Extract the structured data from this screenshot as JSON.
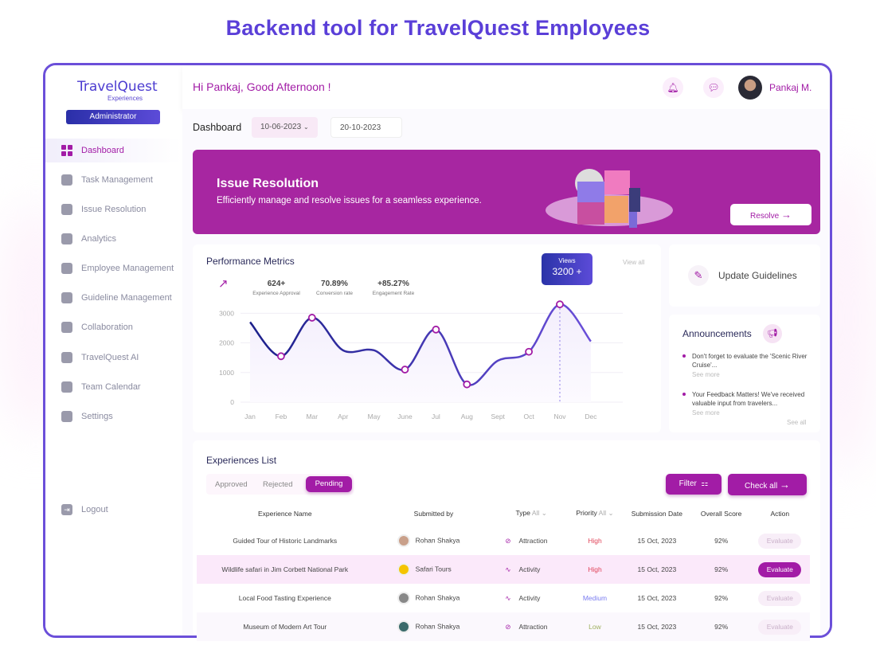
{
  "headline": "Backend tool for TravelQuest Employees",
  "logo": {
    "name": "TravelQuest",
    "sub": "Experiences"
  },
  "role": "Administrator",
  "sidebar": {
    "items": [
      {
        "label": "Dashboard",
        "icon": "grid-icon"
      },
      {
        "label": "Task Management",
        "icon": "bar-chart-icon"
      },
      {
        "label": "Issue Resolution",
        "icon": "alert-icon"
      },
      {
        "label": "Analytics",
        "icon": "pulse-icon"
      },
      {
        "label": "Employee Management",
        "icon": "user-icon"
      },
      {
        "label": "Guideline Management",
        "icon": "chart-icon"
      },
      {
        "label": "Collaboration",
        "icon": "collab-icon"
      },
      {
        "label": "TravelQuest AI",
        "icon": "sparkle-icon"
      },
      {
        "label": "Team Calendar",
        "icon": "calendar-icon"
      },
      {
        "label": "Settings",
        "icon": "gear-icon"
      }
    ],
    "logout": "Logout"
  },
  "header": {
    "greeting": "Hi Pankaj, Good Afternoon !",
    "user": "Pankaj M."
  },
  "filters": {
    "title": "Dashboard",
    "from": "10-06-2023",
    "to": "20-10-2023"
  },
  "banner": {
    "title": "Issue Resolution",
    "subtitle": "Efficiently manage and resolve issues for a seamless experience.",
    "button": "Resolve"
  },
  "metrics": {
    "title": "Performance Metrics",
    "view_all": "View all",
    "stats": [
      {
        "value": "624+",
        "label": "Experience Approval"
      },
      {
        "value": "70.89%",
        "label": "Conversion rate"
      },
      {
        "value": "+85.27%",
        "label": "Engagement Rate"
      }
    ],
    "tooltip": {
      "label": "Views",
      "value": "3200 +"
    }
  },
  "chart_data": {
    "type": "line",
    "categories": [
      "Jan",
      "Feb",
      "Mar",
      "Apr",
      "May",
      "June",
      "Jul",
      "Aug",
      "Sept",
      "Oct",
      "Nov",
      "Dec"
    ],
    "values": [
      2700,
      1550,
      2850,
      1750,
      1750,
      1100,
      2450,
      600,
      1400,
      1700,
      3300,
      2050
    ],
    "markers": [
      "Feb",
      "Mar",
      "June",
      "Jul",
      "Aug",
      "Oct",
      "Nov"
    ],
    "highlight": "Nov",
    "yticks": [
      0,
      1000,
      2000,
      3000
    ],
    "ylim": [
      0,
      3600
    ],
    "grid": true,
    "colors": {
      "start": "#1b1f8a",
      "end": "#6a4fd9",
      "marker": "#a21ca6"
    }
  },
  "guidelines": {
    "label": "Update Guidelines"
  },
  "announcements": {
    "title": "Announcements",
    "items": [
      {
        "text": "Don't forget to evaluate the 'Scenic River Cruise'...",
        "more": "See more"
      },
      {
        "text": "Your Feedback Matters! We've received valuable input from travelers...",
        "more": "See more"
      }
    ],
    "see_all": "See all"
  },
  "experiences": {
    "title": "Experiences List",
    "tabs": [
      "Approved",
      "Rejected",
      "Pending"
    ],
    "active_tab": "Pending",
    "filter": "Filter",
    "check_all": "Check all",
    "columns": [
      "Experience Name",
      "Submitted by",
      "Type",
      "Priority",
      "Submission Date",
      "Overall Score",
      "Action"
    ],
    "type_filter": "All",
    "priority_filter": "All",
    "rows": [
      {
        "name": "Guided Tour of Historic Landmarks",
        "by": "Rohan Shakya",
        "type": "Attraction",
        "priority": "High",
        "date": "15 Oct, 2023",
        "score": "92%",
        "action": "Evaluate"
      },
      {
        "name": "Wildlife safari in Jim Corbett National Park",
        "by": "Safari Tours",
        "type": "Activity",
        "priority": "High",
        "date": "15 Oct, 2023",
        "score": "92%",
        "action": "Evaluate"
      },
      {
        "name": "Local Food Tasting Experience",
        "by": "Rohan Shakya",
        "type": "Activity",
        "priority": "Medium",
        "date": "15 Oct, 2023",
        "score": "92%",
        "action": "Evaluate"
      },
      {
        "name": "Museum of Modern Art Tour",
        "by": "Rohan Shakya",
        "type": "Attraction",
        "priority": "Low",
        "date": "15 Oct, 2023",
        "score": "92%",
        "action": "Evaluate"
      }
    ]
  }
}
